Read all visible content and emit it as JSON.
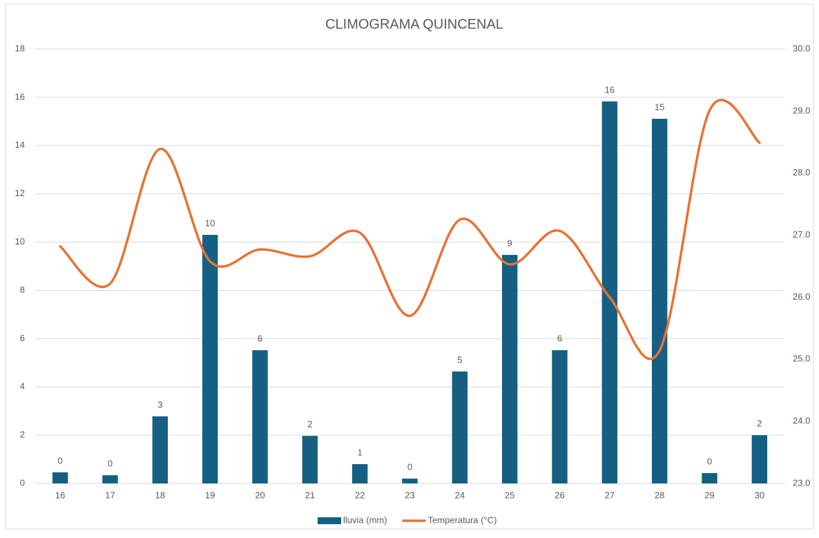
{
  "chart_data": {
    "type": "bar_line",
    "title": "CLIMOGRAMA QUINCENAL",
    "categories": [
      "16",
      "17",
      "18",
      "19",
      "20",
      "21",
      "22",
      "23",
      "24",
      "25",
      "26",
      "27",
      "28",
      "29",
      "30"
    ],
    "series": [
      {
        "name": "lluvia (mm)",
        "type": "bar",
        "color": "#156082",
        "values": [
          0.46,
          0.34,
          2.78,
          10.3,
          5.52,
          1.97,
          0.8,
          0.2,
          4.64,
          9.47,
          5.52,
          15.83,
          15.11,
          0.43,
          2.0
        ],
        "value_labels": [
          "0",
          "0",
          "3",
          "10",
          "6",
          "2",
          "1",
          "0",
          "5",
          "9",
          "6",
          "16",
          "15",
          "0",
          "2"
        ]
      },
      {
        "name": "Temperatura (°C)",
        "type": "line",
        "axis": "y2",
        "color": "#E97132",
        "smooth": true,
        "values": [
          26.82,
          26.22,
          28.39,
          26.58,
          26.77,
          26.66,
          27.04,
          25.7,
          27.25,
          26.53,
          27.07,
          26.0,
          25.14,
          29.01,
          28.49
        ]
      }
    ],
    "ylim": [
      0,
      18
    ],
    "yticks": [
      0,
      2,
      4,
      6,
      8,
      10,
      12,
      14,
      16,
      18
    ],
    "y2lim": [
      23,
      30
    ],
    "y2ticks": [
      {
        "value": 23,
        "label": "23.0"
      },
      {
        "value": 24,
        "label": "24.0"
      },
      {
        "value": 25,
        "label": "25.0"
      },
      {
        "value": 26,
        "label": "26.0"
      },
      {
        "value": 27,
        "label": "27.0"
      },
      {
        "value": 28,
        "label": "28.0"
      },
      {
        "value": 29,
        "label": "29.0"
      },
      {
        "value": 30,
        "label": "30.0"
      }
    ],
    "grid": true,
    "legend": "bottom"
  }
}
